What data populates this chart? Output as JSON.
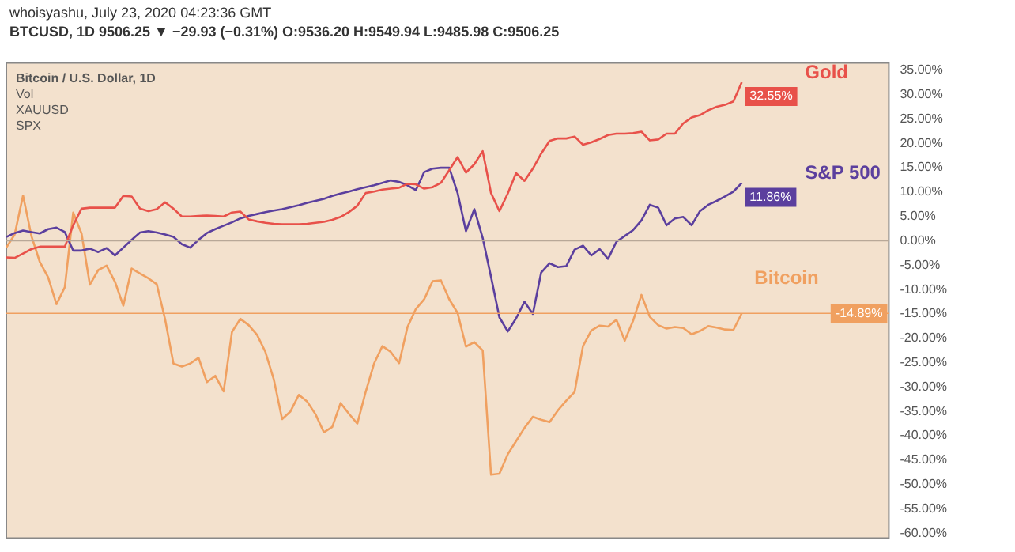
{
  "chart_data": {
    "type": "line",
    "title": "whoisyashu, July 23, 2020 04:23:36 GMT",
    "subtitle": "BTCUSD, 1D 9506.25 ▼ −29.93 (−0.31%) O:9536.20 H:9549.94 L:9485.98 C:9506.25",
    "categories": [
      null,
      null,
      null,
      null,
      null,
      null,
      null,
      null,
      null,
      null,
      null,
      null,
      null,
      null,
      null,
      null,
      null,
      null,
      null,
      null,
      null,
      null,
      null,
      null,
      null,
      null,
      null,
      null,
      null,
      null,
      null,
      null,
      null,
      null,
      null,
      null,
      null,
      null,
      null,
      null,
      null,
      null,
      null,
      null,
      null,
      null,
      null,
      null,
      null,
      null,
      null,
      null,
      null,
      null,
      null,
      null,
      null,
      null,
      null,
      null,
      null,
      null,
      null,
      null,
      null,
      null,
      null,
      null,
      null,
      null,
      null,
      null,
      null,
      null,
      null,
      null,
      null,
      null,
      null,
      null,
      null,
      null,
      null,
      null,
      null,
      null,
      null,
      null,
      null
    ],
    "series": [
      {
        "name": "Gold",
        "color": "#e8514a",
        "value_labels": [
          null,
          null,
          null,
          null,
          null,
          null,
          null,
          null,
          null,
          null,
          null,
          null,
          null,
          null,
          null,
          null,
          null,
          null,
          null,
          null,
          null,
          null,
          null,
          null,
          null,
          null,
          null,
          null,
          null,
          null,
          null,
          null,
          null,
          null,
          null,
          null,
          null,
          null,
          null,
          null,
          null,
          null,
          null,
          null,
          null,
          null,
          null,
          null,
          null,
          null,
          null,
          null,
          null,
          null,
          null,
          null,
          null,
          null,
          null,
          null,
          null,
          null,
          null,
          null,
          null,
          null,
          null,
          null,
          null,
          null,
          null,
          null,
          null,
          null,
          null,
          null,
          null,
          null,
          null,
          null,
          null,
          null,
          null,
          null,
          null,
          null,
          null,
          null,
          "32.55%"
        ],
        "values": [
          -3.4,
          -3.5,
          -2.6,
          -1.7,
          -1.2,
          -1.2,
          -1.2,
          -1.2,
          3.2,
          6.6,
          6.8,
          6.8,
          6.8,
          6.8,
          9.2,
          9.1,
          6.6,
          6.1,
          6.5,
          7.9,
          6.6,
          5,
          5,
          5.1,
          5.2,
          5.1,
          5,
          5.8,
          6,
          4.4,
          4,
          3.7,
          3.5,
          3.4,
          3.4,
          3.4,
          3.5,
          3.7,
          3.9,
          4.3,
          4.9,
          5.9,
          7.2,
          9.8,
          10.1,
          10.5,
          10.7,
          10.9,
          11.7,
          11.6,
          10.7,
          11,
          11.9,
          14.5,
          17.2,
          14,
          15.7,
          18.4,
          9.8,
          6.1,
          9.7,
          13.9,
          12.3,
          14.8,
          17.9,
          20.5,
          21,
          21,
          21.4,
          19.7,
          20.2,
          20.9,
          21.7,
          22,
          22,
          22.1,
          22.4,
          20.6,
          20.8,
          22,
          22,
          24.1,
          25.3,
          25.8,
          26.8,
          27.5,
          27.9,
          28.6,
          32.55
        ]
      },
      {
        "name": "S&P 500",
        "color": "#5b3f9e",
        "value_labels": [
          null,
          null,
          null,
          null,
          null,
          null,
          null,
          null,
          null,
          null,
          null,
          null,
          null,
          null,
          null,
          null,
          null,
          null,
          null,
          null,
          null,
          null,
          null,
          null,
          null,
          null,
          null,
          null,
          null,
          null,
          null,
          null,
          null,
          null,
          null,
          null,
          null,
          null,
          null,
          null,
          null,
          null,
          null,
          null,
          null,
          null,
          null,
          null,
          null,
          null,
          null,
          null,
          null,
          null,
          null,
          null,
          null,
          null,
          null,
          null,
          null,
          null,
          null,
          null,
          null,
          null,
          null,
          null,
          null,
          null,
          null,
          null,
          null,
          null,
          null,
          null,
          null,
          null,
          null,
          null,
          null,
          null,
          null,
          null,
          null,
          null,
          null,
          null,
          "11.86%"
        ],
        "values": [
          0.8,
          1.6,
          2.1,
          1.8,
          1.5,
          2.4,
          2.7,
          1.8,
          -2,
          -2,
          -1.6,
          -2.3,
          -1.5,
          -3,
          -1.4,
          0.2,
          1.7,
          2,
          1.7,
          1.3,
          0.8,
          -0.7,
          -1.4,
          0.2,
          1.6,
          2.4,
          3.1,
          3.8,
          4.6,
          5.1,
          5.5,
          5.9,
          6.2,
          6.5,
          6.9,
          7.3,
          7.8,
          8.2,
          8.6,
          9.2,
          9.7,
          10.1,
          10.6,
          11,
          11.4,
          11.9,
          12.4,
          12.1,
          11.4,
          10.4,
          14.1,
          14.8,
          15,
          15,
          9.8,
          2,
          6.5,
          0.6,
          -7.4,
          -15.7,
          -18.6,
          -15.9,
          -12.5,
          -15,
          -6.5,
          -4.6,
          -5.4,
          -5.2,
          -1.8,
          -1,
          -3,
          -1.7,
          -3.7,
          -0.2,
          1,
          2.2,
          4.2,
          7.4,
          6.8,
          3.2,
          4.6,
          4.9,
          3.2,
          6.1,
          7.4,
          8.2,
          9.1,
          10.1,
          11.86
        ]
      },
      {
        "name": "Bitcoin",
        "color": "#f0a060",
        "values": [
          -1.4,
          1.3,
          9.3,
          1,
          -4.3,
          -7.5,
          -13,
          -9.5,
          5.8,
          1.5,
          -9,
          -6,
          -5.1,
          -8.4,
          -13.3,
          -5.7,
          -6.7,
          -7.7,
          -8.9,
          -16.1,
          -25.2,
          -25.8,
          -25.2,
          -24,
          -29,
          -27.7,
          -30.9,
          -18.7,
          -16,
          -17.3,
          -19.3,
          -22.8,
          -28.4,
          -36.6,
          -35,
          -31.6,
          -33,
          -35.6,
          -39.3,
          -38.2,
          -33.3,
          -35.5,
          -37.5,
          -31,
          -25.2,
          -21.6,
          -22.8,
          -25.1,
          -17.7,
          -14,
          -12,
          -8.3,
          -8.1,
          -12,
          -14.8,
          -21.7,
          -20.8,
          -22.5,
          -48,
          -47.8,
          -43.8,
          -41.1,
          -38.4,
          -36.1,
          -36.7,
          -37.2,
          -34.8,
          -32.8,
          -31,
          -21.6,
          -18.4,
          -17.4,
          -17.6,
          -16.2,
          -20.5,
          -16.4,
          -11.1,
          -15.6,
          -17.3,
          -18,
          -17.7,
          -17.9,
          -19.2,
          -18.5,
          -17.5,
          -17.8,
          -18.2,
          -18.3,
          -14.89
        ]
      }
    ],
    "ylim": [
      -61,
      36.5
    ],
    "yticks": [
      {
        "value": 35,
        "label": "35.00%"
      },
      {
        "value": 30,
        "label": "30.00%"
      },
      {
        "value": 25,
        "label": "25.00%"
      },
      {
        "value": 20,
        "label": "20.00%"
      },
      {
        "value": 15,
        "label": "15.00%"
      },
      {
        "value": 10,
        "label": "10.00%"
      },
      {
        "value": 5,
        "label": "5.00%"
      },
      {
        "value": 0,
        "label": "0.00%"
      },
      {
        "value": -5,
        "label": "-5.00%"
      },
      {
        "value": -10,
        "label": "-10.00%"
      },
      {
        "value": -15,
        "label": "-15.00%"
      },
      {
        "value": -20,
        "label": "-20.00%"
      },
      {
        "value": -25,
        "label": "-25.00%"
      },
      {
        "value": -30,
        "label": "-30.00%"
      },
      {
        "value": -35,
        "label": "-35.00%"
      },
      {
        "value": -40,
        "label": "-40.00%"
      },
      {
        "value": -45,
        "label": "-45.00%"
      },
      {
        "value": -50,
        "label": "-50.00%"
      },
      {
        "value": -55,
        "label": "-55.00%"
      },
      {
        "value": -60,
        "label": "-60.00%"
      }
    ],
    "ref_lines": [
      {
        "axis": "y",
        "value": 0,
        "color": "#b8a898"
      },
      {
        "axis": "y",
        "value": -14.89,
        "color": "#f0a060",
        "label": "-14.89%"
      }
    ],
    "annotations": [
      "Bitcoin / U.S. Dollar, 1D",
      "Vol",
      "XAUUSD",
      "SPX"
    ],
    "grid": false,
    "legend": false,
    "marker": "none",
    "line_style": "solid",
    "tick_labels": "y"
  }
}
